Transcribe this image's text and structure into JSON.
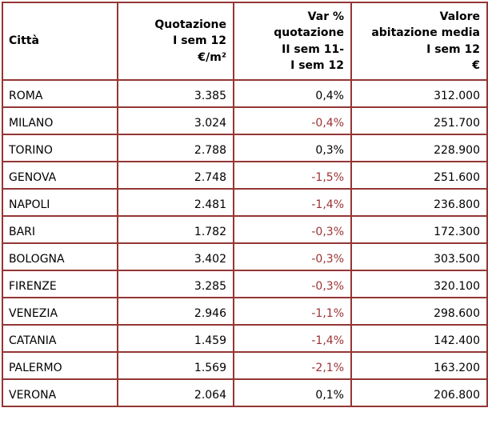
{
  "chart_data": {
    "type": "table",
    "columns": [
      "Città",
      "Quotazione\nI sem 12\n€/m²",
      "Var %\nquotazione\nII sem 11-\nI sem 12",
      "Valore\nabitazione media\nI sem 12\n€"
    ],
    "rows": [
      {
        "citta": "ROMA",
        "quotazione_eur_m2": "3.385",
        "var_pct": "0,4%",
        "valore_eur": "312.000",
        "var_negative": false
      },
      {
        "citta": "MILANO",
        "quotazione_eur_m2": "3.024",
        "var_pct": "-0,4%",
        "valore_eur": "251.700",
        "var_negative": true
      },
      {
        "citta": "TORINO",
        "quotazione_eur_m2": "2.788",
        "var_pct": "0,3%",
        "valore_eur": "228.900",
        "var_negative": false
      },
      {
        "citta": "GENOVA",
        "quotazione_eur_m2": "2.748",
        "var_pct": "-1,5%",
        "valore_eur": "251.600",
        "var_negative": true
      },
      {
        "citta": "NAPOLI",
        "quotazione_eur_m2": "2.481",
        "var_pct": "-1,4%",
        "valore_eur": "236.800",
        "var_negative": true
      },
      {
        "citta": "BARI",
        "quotazione_eur_m2": "1.782",
        "var_pct": "-0,3%",
        "valore_eur": "172.300",
        "var_negative": true
      },
      {
        "citta": "BOLOGNA",
        "quotazione_eur_m2": "3.402",
        "var_pct": "-0,3%",
        "valore_eur": "303.500",
        "var_negative": true
      },
      {
        "citta": "FIRENZE",
        "quotazione_eur_m2": "3.285",
        "var_pct": "-0,3%",
        "valore_eur": "320.100",
        "var_negative": true
      },
      {
        "citta": "VENEZIA",
        "quotazione_eur_m2": "2.946",
        "var_pct": "-1,1%",
        "valore_eur": "298.600",
        "var_negative": true
      },
      {
        "citta": "CATANIA",
        "quotazione_eur_m2": "1.459",
        "var_pct": "-1,4%",
        "valore_eur": "142.400",
        "var_negative": true
      },
      {
        "citta": "PALERMO",
        "quotazione_eur_m2": "1.569",
        "var_pct": "-2,1%",
        "valore_eur": "163.200",
        "var_negative": true
      },
      {
        "citta": "VERONA",
        "quotazione_eur_m2": "2.064",
        "var_pct": "0,1%",
        "valore_eur": "206.800",
        "var_negative": false
      }
    ]
  },
  "colors": {
    "border": "#943634",
    "negative_text": "#9C3234",
    "text": "#000000",
    "background": "#FFFFFF"
  }
}
